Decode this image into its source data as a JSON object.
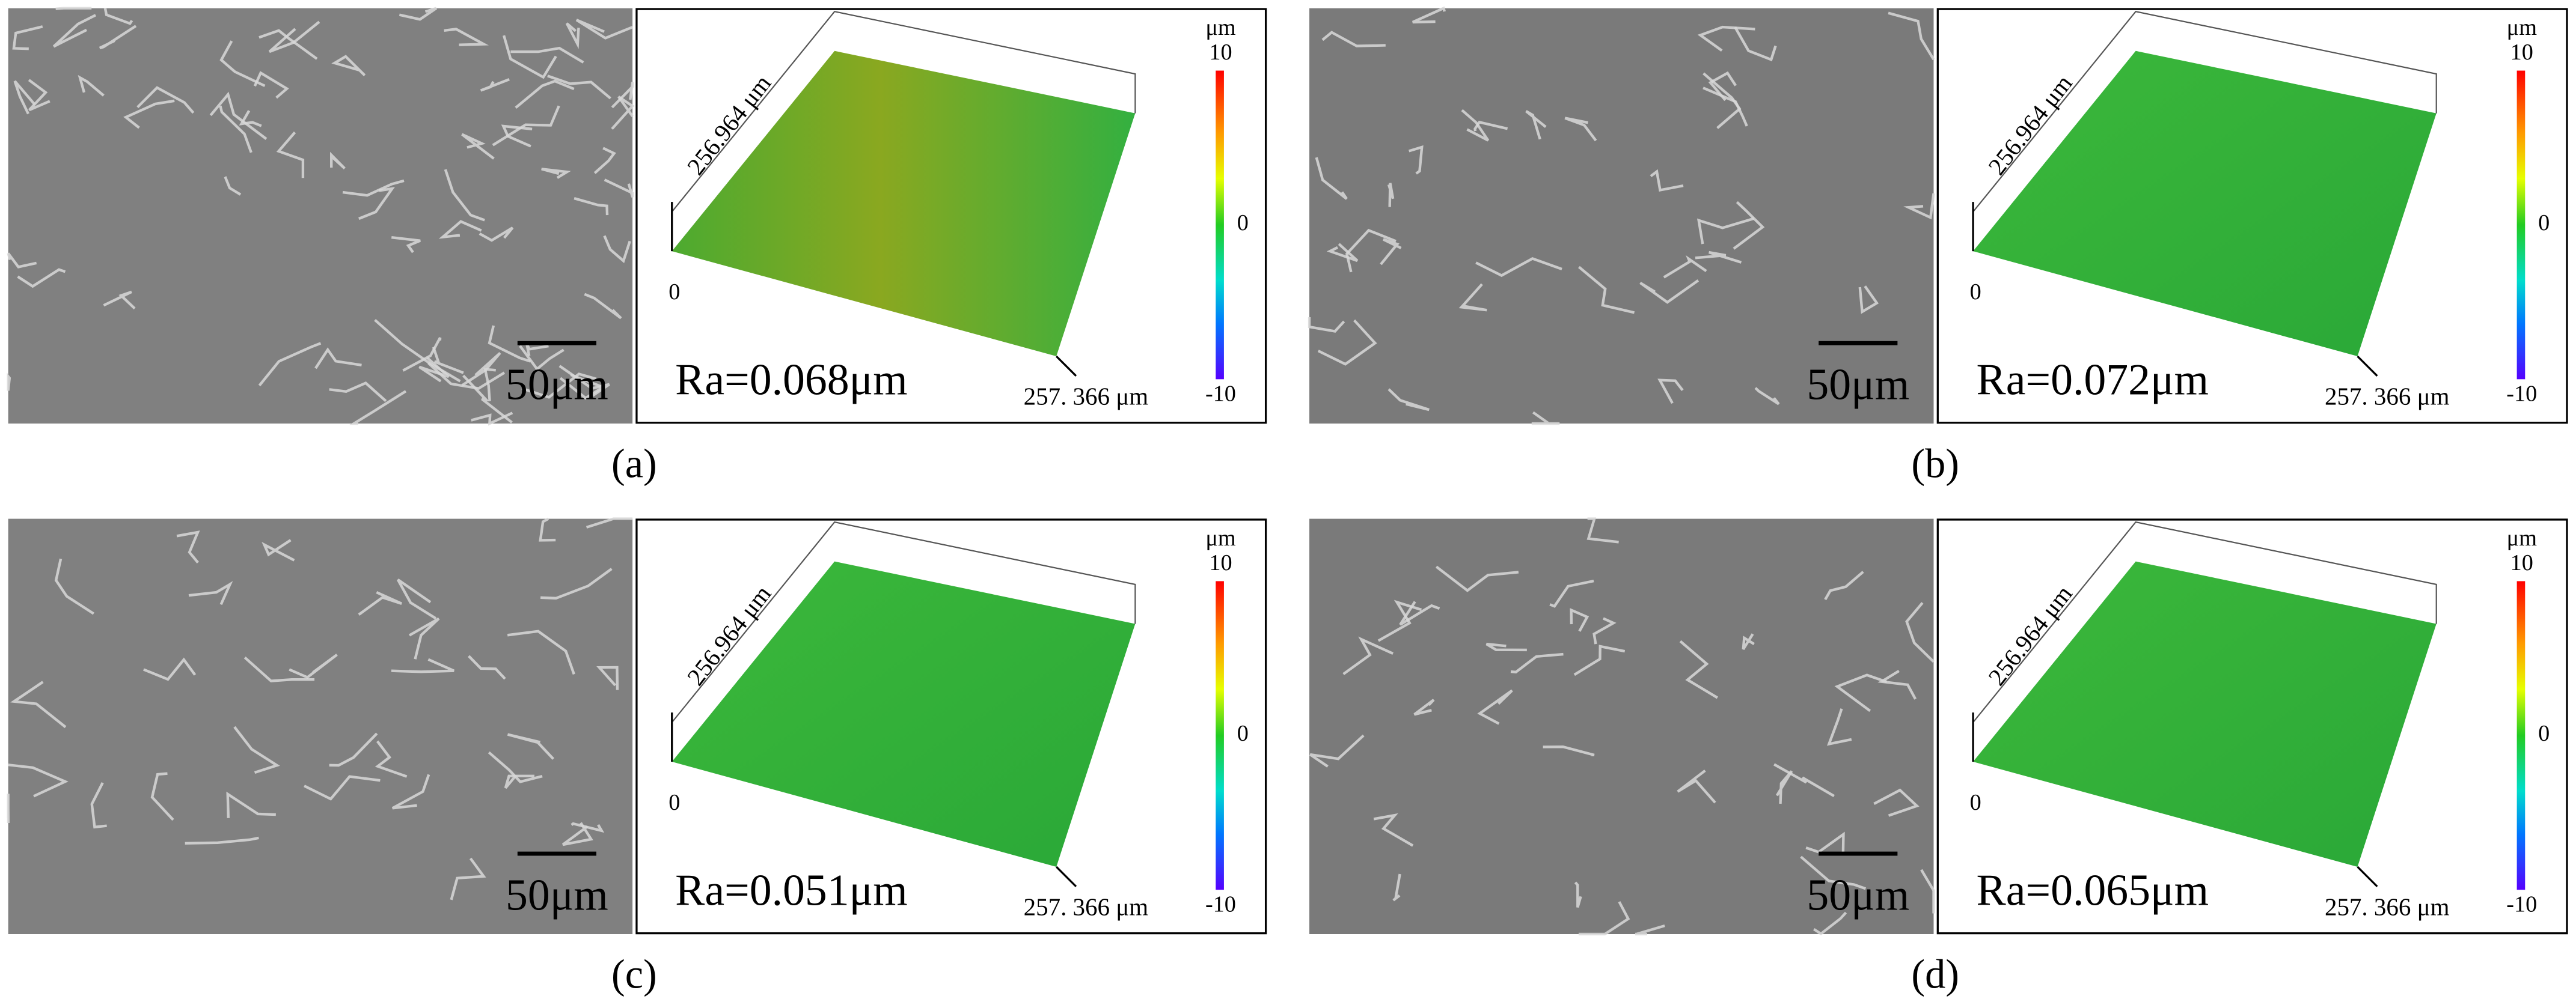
{
  "panels": [
    {
      "label": "(a)",
      "scale_bar": "50μm",
      "roughness": "Ra=0.068μm",
      "y_axis": "256.964 μm",
      "x_axis": "257. 366 μm",
      "origin": "0",
      "colorbar_unit": "μm",
      "colorbar_ticks": [
        "10",
        "0",
        "-10"
      ]
    },
    {
      "label": "(b)",
      "scale_bar": "50μm",
      "roughness": "Ra=0.072μm",
      "y_axis": "256.964 μm",
      "x_axis": "257. 366 μm",
      "origin": "0",
      "colorbar_unit": "μm",
      "colorbar_ticks": [
        "10",
        "0",
        "-10"
      ]
    },
    {
      "label": "(c)",
      "scale_bar": "50μm",
      "roughness": "Ra=0.051μm",
      "y_axis": "256.964 μm",
      "x_axis": "257. 366 μm",
      "origin": "0",
      "colorbar_unit": "μm",
      "colorbar_ticks": [
        "10",
        "0",
        "-10"
      ]
    },
    {
      "label": "(d)",
      "scale_bar": "50μm",
      "roughness": "Ra=0.065μm",
      "y_axis": "256.964 μm",
      "x_axis": "257. 366 μm",
      "origin": "0",
      "colorbar_unit": "μm",
      "colorbar_ticks": [
        "10",
        "0",
        "-10"
      ]
    }
  ]
}
